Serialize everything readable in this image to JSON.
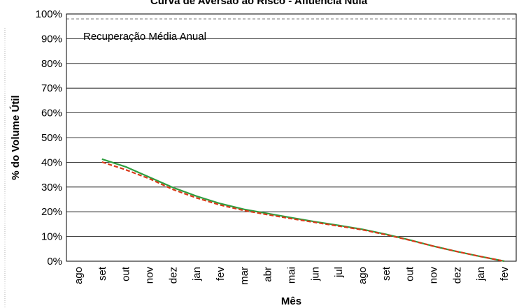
{
  "chart_data": {
    "type": "line",
    "title": "Curva de Aversão ao Risco - Afluência Nula",
    "xlabel": "Mês",
    "ylabel": "% do Volume Útil",
    "ylim": [
      0,
      100
    ],
    "yticks": [
      "0%",
      "10%",
      "20%",
      "30%",
      "40%",
      "50%",
      "60%",
      "70%",
      "80%",
      "90%",
      "100%"
    ],
    "categories": [
      "ago",
      "set",
      "out",
      "nov",
      "dez",
      "jan",
      "fev",
      "mar",
      "abr",
      "mai",
      "jun",
      "jul",
      "ago",
      "set",
      "out",
      "nov",
      "dez",
      "jan",
      "fev"
    ],
    "annotation": "Recuperação Média Anual",
    "reference_line": {
      "value": 98,
      "color": "#808080",
      "style": "dashed"
    },
    "grid": true,
    "series": [
      {
        "color": "#2e9e3f",
        "style": "solid",
        "values": [
          null,
          41.3,
          38.2,
          34.0,
          29.8,
          26.3,
          23.3,
          21.0,
          19.3,
          17.6,
          16.0,
          14.5,
          12.9,
          10.9,
          8.6,
          6.1,
          3.9,
          1.9,
          0.0
        ]
      },
      {
        "color": "#d93a1a",
        "style": "dashed",
        "values": [
          null,
          40.1,
          37.0,
          33.4,
          29.0,
          25.6,
          22.7,
          20.5,
          18.8,
          17.2,
          15.7,
          14.2,
          12.7,
          10.7,
          8.5,
          6.1,
          3.9,
          1.9,
          0.0
        ]
      }
    ]
  }
}
